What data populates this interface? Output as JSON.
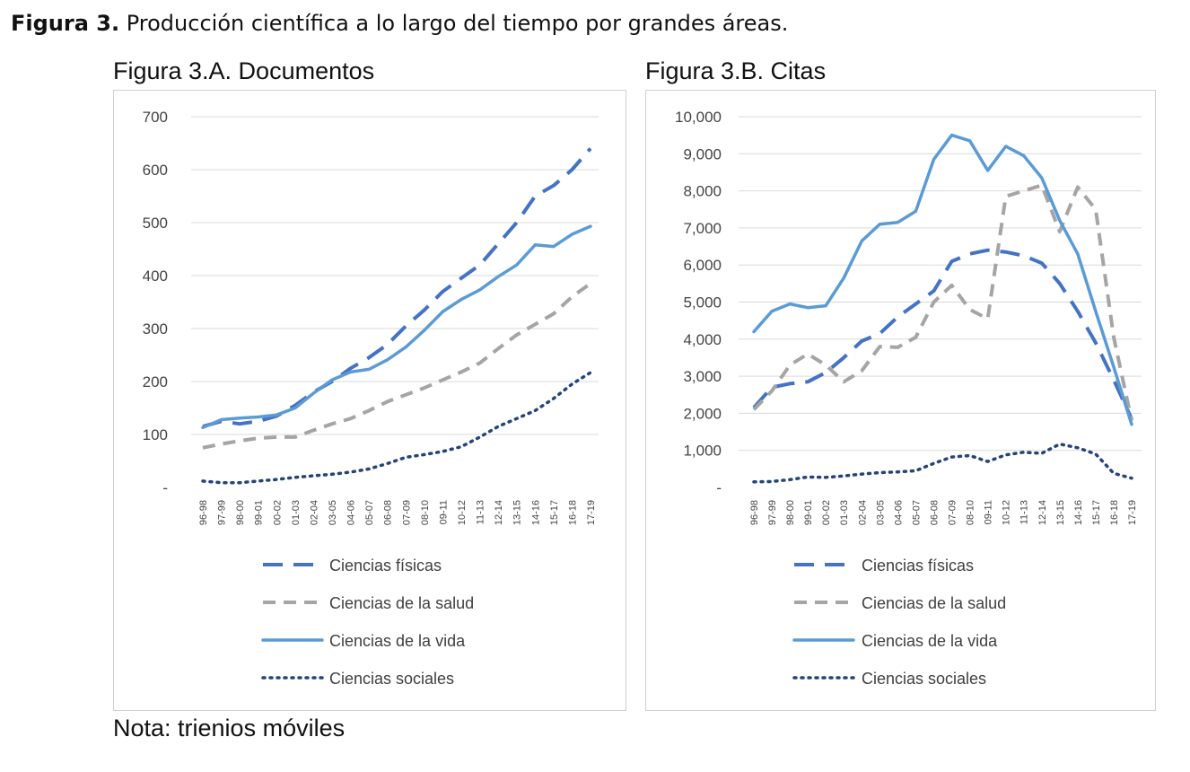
{
  "caption": {
    "bold": "Figura 3.",
    "text": "Producción científica a lo largo del tiempo por grandes áreas."
  },
  "note": "Nota: trienios móviles",
  "styles": {
    "Ciencias físicas": {
      "color": "#4472c4",
      "dash": "dashed-long"
    },
    "Ciencias de la salud": {
      "color": "#a5a5a5",
      "dash": "dashed"
    },
    "Ciencias de la vida": {
      "color": "#5b9bd5",
      "dash": "solid"
    },
    "Ciencias sociales": {
      "color": "#264478",
      "dash": "dotted"
    }
  },
  "chart_data": [
    {
      "type": "line",
      "title": "Figura 3.A. Documentos",
      "categories": [
        "96-98",
        "97-99",
        "98-00",
        "99-01",
        "00-02",
        "01-03",
        "02-04",
        "03-05",
        "04-06",
        "05-07",
        "06-08",
        "07-09",
        "08-10",
        "09-11",
        "10-12",
        "11-13",
        "12-14",
        "13-15",
        "14-16",
        "15-17",
        "16-18",
        "17-19"
      ],
      "ylim": [
        0,
        700
      ],
      "yticks": [
        0,
        100,
        200,
        300,
        400,
        500,
        600,
        700
      ],
      "ytick_labels": [
        "-",
        "100",
        "200",
        "300",
        "400",
        "500",
        "600",
        "700"
      ],
      "grid": true,
      "legend_position": "bottom",
      "series": [
        {
          "name": "Ciencias físicas",
          "values": [
            115,
            125,
            120,
            125,
            135,
            155,
            180,
            200,
            225,
            245,
            270,
            305,
            335,
            370,
            395,
            420,
            460,
            500,
            550,
            570,
            600,
            640
          ]
        },
        {
          "name": "Ciencias de la salud",
          "values": [
            75,
            82,
            88,
            93,
            95,
            95,
            108,
            120,
            130,
            145,
            162,
            175,
            188,
            203,
            218,
            235,
            262,
            288,
            308,
            328,
            360,
            385
          ]
        },
        {
          "name": "Ciencias de la vida",
          "values": [
            113,
            128,
            131,
            133,
            137,
            150,
            178,
            203,
            218,
            223,
            241,
            265,
            297,
            332,
            355,
            373,
            398,
            420,
            458,
            455,
            478,
            493
          ]
        },
        {
          "name": "Ciencias sociales",
          "values": [
            12,
            9,
            9,
            12,
            15,
            19,
            22,
            25,
            29,
            35,
            45,
            57,
            62,
            68,
            77,
            95,
            115,
            130,
            145,
            168,
            195,
            217
          ]
        }
      ]
    },
    {
      "type": "line",
      "title": "Figura 3.B. Citas",
      "categories": [
        "96-98",
        "97-99",
        "98-00",
        "99-01",
        "00-02",
        "01-03",
        "02-04",
        "03-05",
        "04-06",
        "05-07",
        "06-08",
        "07-09",
        "08-10",
        "09-11",
        "10-12",
        "11-13",
        "12-14",
        "13-15",
        "14-16",
        "15-17",
        "16-18",
        "17-19"
      ],
      "ylim": [
        0,
        10000
      ],
      "yticks": [
        0,
        1000,
        2000,
        3000,
        4000,
        5000,
        6000,
        7000,
        8000,
        9000,
        10000
      ],
      "ytick_labels": [
        "-",
        "1,000",
        "2,000",
        "3,000",
        "4,000",
        "5,000",
        "6,000",
        "7,000",
        "8,000",
        "9,000",
        "10,000"
      ],
      "grid": true,
      "legend_position": "bottom",
      "series": [
        {
          "name": "Ciencias físicas",
          "values": [
            2150,
            2700,
            2800,
            2850,
            3100,
            3500,
            3950,
            4150,
            4600,
            4950,
            5300,
            6100,
            6300,
            6400,
            6350,
            6250,
            6050,
            5500,
            4750,
            3900,
            2900,
            1850
          ]
        },
        {
          "name": "Ciencias de la salud",
          "values": [
            2100,
            2600,
            3300,
            3600,
            3300,
            2850,
            3150,
            3800,
            3780,
            4050,
            5000,
            5450,
            4800,
            4550,
            7850,
            8000,
            8150,
            6900,
            8100,
            7500,
            4050,
            1800
          ]
        },
        {
          "name": "Ciencias de la vida",
          "values": [
            4200,
            4750,
            4950,
            4850,
            4900,
            5650,
            6650,
            7100,
            7150,
            7450,
            8850,
            9500,
            9350,
            8550,
            9200,
            8950,
            8350,
            7200,
            6300,
            4750,
            3250,
            1700
          ]
        },
        {
          "name": "Ciencias sociales",
          "values": [
            150,
            160,
            210,
            280,
            270,
            310,
            360,
            400,
            420,
            450,
            650,
            820,
            860,
            700,
            880,
            950,
            920,
            1170,
            1070,
            900,
            380,
            250
          ]
        }
      ]
    }
  ]
}
